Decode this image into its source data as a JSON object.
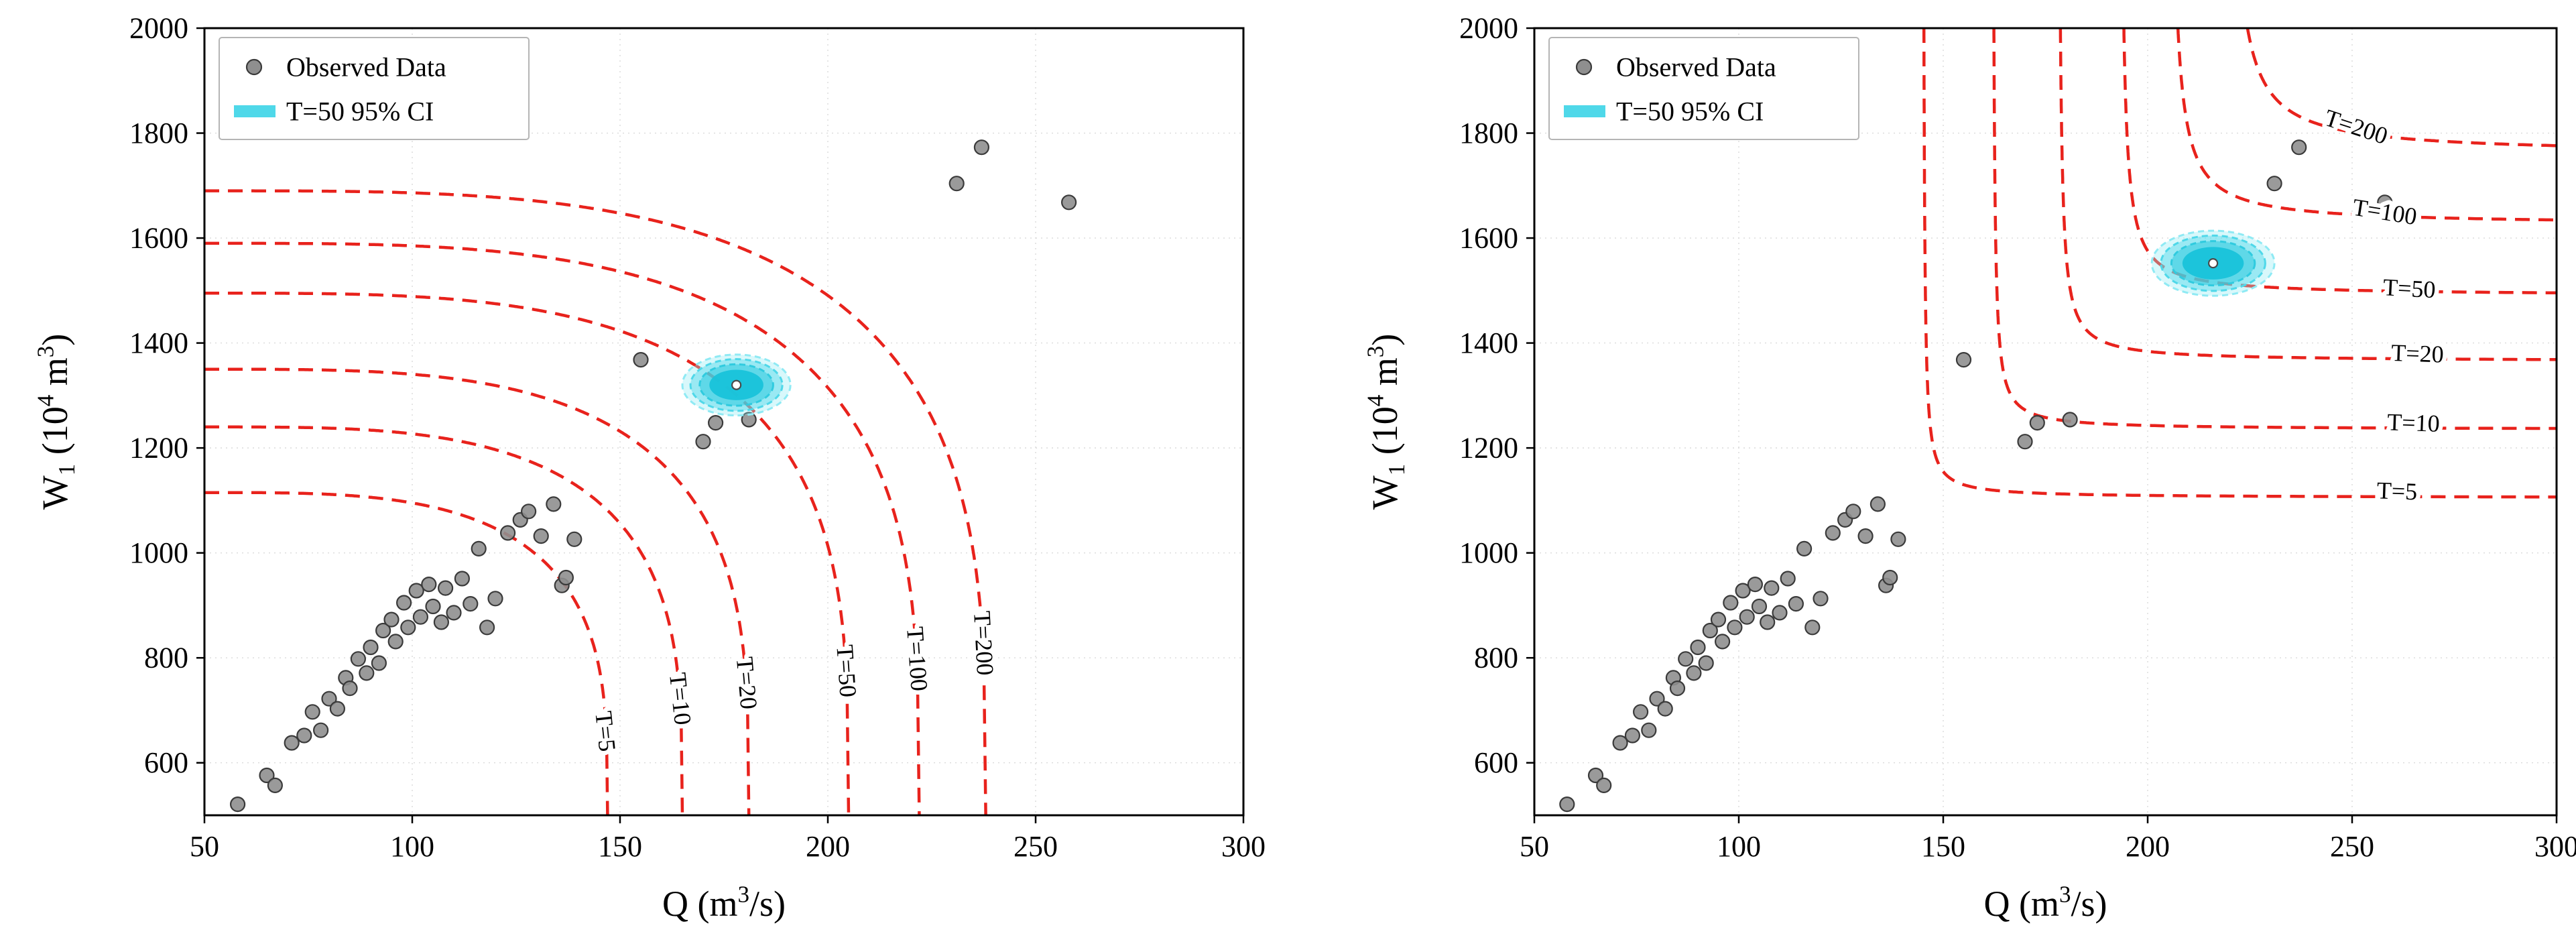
{
  "figure": {
    "background": "#ffffff"
  },
  "chart_data": [
    {
      "id": "left",
      "type": "scatter",
      "xlabel": "Q (m³/s)",
      "xlabel_parts": [
        [
          "Q (m",
          "n"
        ],
        [
          "3",
          "sup"
        ],
        [
          "/s)",
          "n"
        ]
      ],
      "ylabel": "W₁ (10⁴ m³)",
      "ylabel_parts": [
        [
          "W",
          "n"
        ],
        [
          "1",
          "sub"
        ],
        [
          " (10",
          "n"
        ],
        [
          "4",
          "sup"
        ],
        [
          " m",
          "n"
        ],
        [
          "3",
          "sup"
        ],
        [
          ")",
          "n"
        ]
      ],
      "xlim": [
        50,
        300
      ],
      "ylim": [
        500,
        2000
      ],
      "xticks": [
        50,
        100,
        150,
        200,
        250,
        300
      ],
      "yticks": [
        600,
        800,
        1000,
        1200,
        1400,
        1600,
        1800,
        2000
      ],
      "grid": true,
      "legend_position": "upper-left",
      "legend": [
        {
          "label": "Observed Data",
          "swatch": "marker"
        },
        {
          "label": "T=50 95% CI",
          "swatch": "line"
        }
      ],
      "colors": {
        "contour": "#e8221c",
        "scatter_fill": "#8f8f8f",
        "scatter_edge": "#3a3a3a",
        "ci_core": "#18c3da",
        "ci_mid": "#4fd8e9",
        "ci_deep": "#30cbdf",
        "ci_light": "#8feaf4"
      },
      "observed_points": [
        [
          58,
          521
        ],
        [
          65,
          576
        ],
        [
          67,
          557
        ],
        [
          71,
          638
        ],
        [
          74,
          652
        ],
        [
          76,
          697
        ],
        [
          78,
          662
        ],
        [
          80,
          722
        ],
        [
          82,
          703
        ],
        [
          84,
          762
        ],
        [
          85,
          742
        ],
        [
          87,
          798
        ],
        [
          89,
          771
        ],
        [
          90,
          820
        ],
        [
          92,
          790
        ],
        [
          93,
          852
        ],
        [
          95,
          873
        ],
        [
          96,
          831
        ],
        [
          98,
          905
        ],
        [
          99,
          858
        ],
        [
          101,
          928
        ],
        [
          102,
          878
        ],
        [
          104,
          940
        ],
        [
          105,
          898
        ],
        [
          107,
          868
        ],
        [
          108,
          933
        ],
        [
          110,
          886
        ],
        [
          112,
          951
        ],
        [
          114,
          903
        ],
        [
          116,
          1008
        ],
        [
          118,
          858
        ],
        [
          120,
          913
        ],
        [
          123,
          1038
        ],
        [
          126,
          1063
        ],
        [
          128,
          1079
        ],
        [
          131,
          1032
        ],
        [
          134,
          1093
        ],
        [
          136,
          938
        ],
        [
          137,
          953
        ],
        [
          139,
          1026
        ],
        [
          155,
          1368
        ],
        [
          170,
          1212
        ],
        [
          173,
          1248
        ],
        [
          181,
          1254
        ],
        [
          231,
          1704
        ],
        [
          237,
          1773
        ],
        [
          258,
          1668
        ]
      ],
      "return_period_curves": {
        "model": "superellipse",
        "anchor": [
          50,
          500
        ],
        "shape_exponent": 3.4,
        "curves": [
          {
            "T": 5,
            "label": "T=5",
            "q_asymptote": 147,
            "w_asymptote": 1115,
            "label_q": 146.5,
            "label_w": 660,
            "label_rotation": 84
          },
          {
            "T": 10,
            "label": "T=10",
            "q_asymptote": 165,
            "w_asymptote": 1240,
            "label_q": 164.5,
            "label_w": 722,
            "label_rotation": 84
          },
          {
            "T": 20,
            "label": "T=20",
            "q_asymptote": 181,
            "w_asymptote": 1350,
            "label_q": 180.5,
            "label_w": 752,
            "label_rotation": 85
          },
          {
            "T": 50,
            "label": "T=50",
            "q_asymptote": 205,
            "w_asymptote": 1495,
            "label_q": 204.5,
            "label_w": 775,
            "label_rotation": 86
          },
          {
            "T": 100,
            "label": "T=100",
            "q_asymptote": 222,
            "w_asymptote": 1590,
            "label_q": 221.5,
            "label_w": 798,
            "label_rotation": 86
          },
          {
            "T": 200,
            "label": "T=200",
            "q_asymptote": 238,
            "w_asymptote": 1690,
            "label_q": 237.5,
            "label_w": 828,
            "label_rotation": 87
          }
        ]
      },
      "ci_ellipse": {
        "label": "T=50 95% CI",
        "center": [
          178,
          1320
        ],
        "rx": 13,
        "ry": 58
      }
    },
    {
      "id": "right",
      "type": "scatter",
      "xlabel": "Q (m³/s)",
      "xlabel_parts": [
        [
          "Q (m",
          "n"
        ],
        [
          "3",
          "sup"
        ],
        [
          "/s)",
          "n"
        ]
      ],
      "ylabel": "W₁ (10⁴ m³)",
      "ylabel_parts": [
        [
          "W",
          "n"
        ],
        [
          "1",
          "sub"
        ],
        [
          " (10",
          "n"
        ],
        [
          "4",
          "sup"
        ],
        [
          " m",
          "n"
        ],
        [
          "3",
          "sup"
        ],
        [
          ")",
          "n"
        ]
      ],
      "xlim": [
        50,
        300
      ],
      "ylim": [
        500,
        2000
      ],
      "xticks": [
        50,
        100,
        150,
        200,
        250,
        300
      ],
      "yticks": [
        600,
        800,
        1000,
        1200,
        1400,
        1600,
        1800,
        2000
      ],
      "grid": true,
      "legend_position": "upper-left",
      "legend": [
        {
          "label": "Observed Data",
          "swatch": "marker"
        },
        {
          "label": "T=50 95% CI",
          "swatch": "line"
        }
      ],
      "colors": {
        "contour": "#e8221c",
        "scatter_fill": "#8f8f8f",
        "scatter_edge": "#3a3a3a",
        "ci_core": "#18c3da",
        "ci_mid": "#4fd8e9",
        "ci_deep": "#30cbdf",
        "ci_light": "#8feaf4"
      },
      "observed_points": [
        [
          58,
          521
        ],
        [
          65,
          576
        ],
        [
          67,
          557
        ],
        [
          71,
          638
        ],
        [
          74,
          652
        ],
        [
          76,
          697
        ],
        [
          78,
          662
        ],
        [
          80,
          722
        ],
        [
          82,
          703
        ],
        [
          84,
          762
        ],
        [
          85,
          742
        ],
        [
          87,
          798
        ],
        [
          89,
          771
        ],
        [
          90,
          820
        ],
        [
          92,
          790
        ],
        [
          93,
          852
        ],
        [
          95,
          873
        ],
        [
          96,
          831
        ],
        [
          98,
          905
        ],
        [
          99,
          858
        ],
        [
          101,
          928
        ],
        [
          102,
          878
        ],
        [
          104,
          940
        ],
        [
          105,
          898
        ],
        [
          107,
          868
        ],
        [
          108,
          933
        ],
        [
          110,
          886
        ],
        [
          112,
          951
        ],
        [
          114,
          903
        ],
        [
          116,
          1008
        ],
        [
          118,
          858
        ],
        [
          120,
          913
        ],
        [
          123,
          1038
        ],
        [
          126,
          1063
        ],
        [
          128,
          1079
        ],
        [
          131,
          1032
        ],
        [
          134,
          1093
        ],
        [
          136,
          938
        ],
        [
          137,
          953
        ],
        [
          139,
          1026
        ],
        [
          155,
          1368
        ],
        [
          170,
          1212
        ],
        [
          173,
          1248
        ],
        [
          181,
          1254
        ],
        [
          231,
          1704
        ],
        [
          237,
          1773
        ],
        [
          258,
          1668
        ]
      ],
      "return_period_curves": {
        "model": "hyperbola",
        "curves": [
          {
            "T": 5,
            "label": "T=5",
            "q_asymptote": 145,
            "w_asymptote": 1105,
            "k": 250,
            "label_q": 261,
            "label_w": 1118,
            "label_rotation": 2
          },
          {
            "T": 10,
            "label": "T=10",
            "q_asymptote": 162,
            "w_asymptote": 1235,
            "k": 300,
            "label_q": 265,
            "label_w": 1248,
            "label_rotation": 2
          },
          {
            "T": 20,
            "label": "T=20",
            "q_asymptote": 178,
            "w_asymptote": 1365,
            "k": 420,
            "label_q": 266,
            "label_w": 1380,
            "label_rotation": 2
          },
          {
            "T": 50,
            "label": "T=50",
            "q_asymptote": 193,
            "w_asymptote": 1490,
            "k": 600,
            "label_q": 264,
            "label_w": 1504,
            "label_rotation": 3
          },
          {
            "T": 100,
            "label": "T=100",
            "q_asymptote": 205,
            "w_asymptote": 1625,
            "k": 900,
            "label_q": 258,
            "label_w": 1650,
            "label_rotation": 9
          },
          {
            "T": 200,
            "label": "T=200",
            "q_asymptote": 219,
            "w_asymptote": 1760,
            "k": 1300,
            "label_q": 251,
            "label_w": 1812,
            "label_rotation": 18
          }
        ]
      },
      "ci_ellipse": {
        "label": "T=50 95% CI",
        "center": [
          216,
          1552
        ],
        "rx": 15,
        "ry": 62
      }
    }
  ]
}
